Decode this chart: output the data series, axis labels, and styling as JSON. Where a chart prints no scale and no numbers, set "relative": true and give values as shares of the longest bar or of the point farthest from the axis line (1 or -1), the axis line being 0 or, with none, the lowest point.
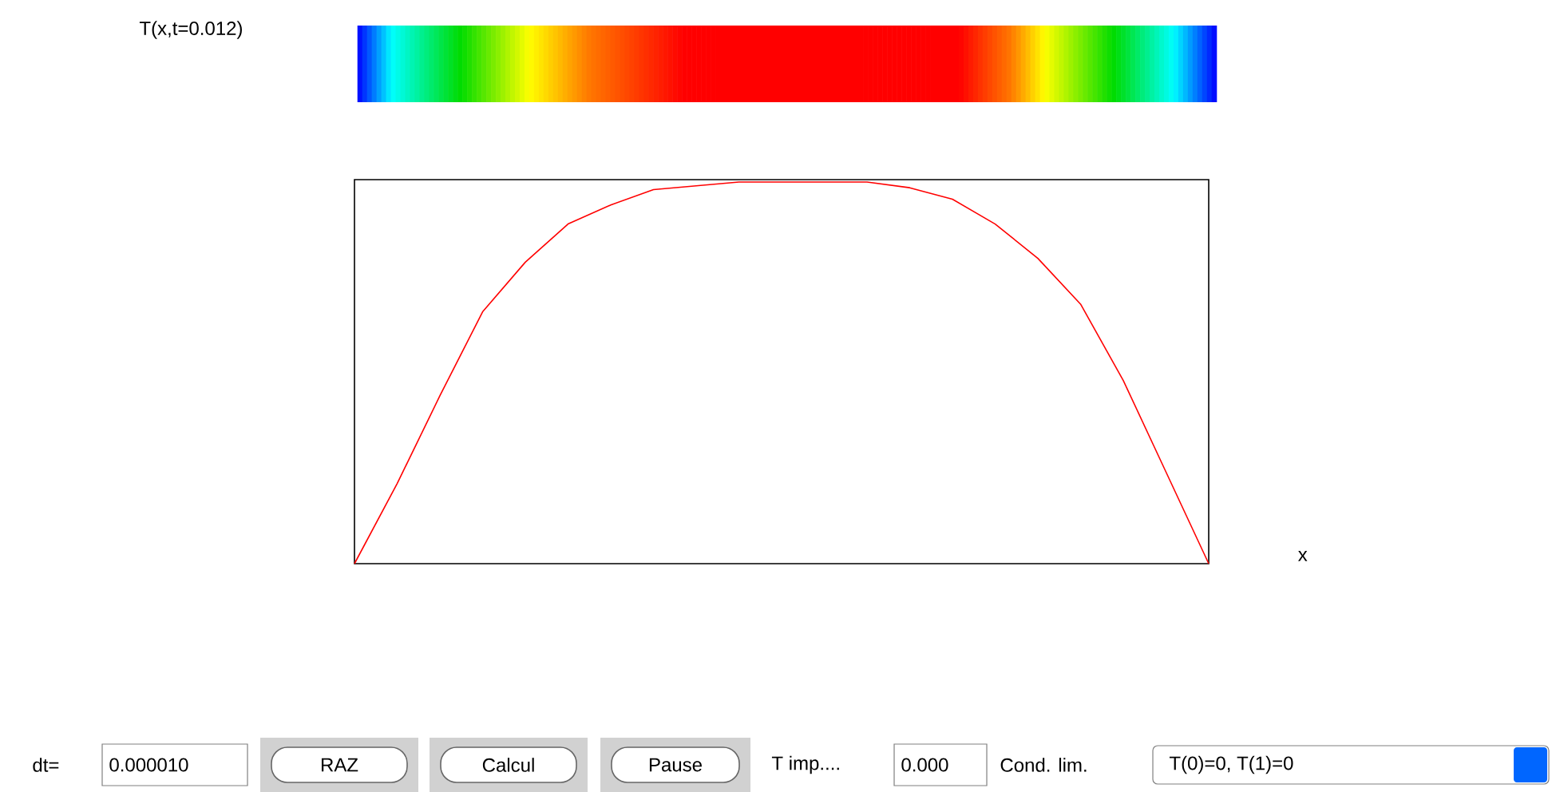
{
  "chart_data": {
    "type": "line",
    "title": "T(x,t=0.012)",
    "xlabel": "x",
    "relative": true,
    "categories": [
      null,
      null,
      null,
      null,
      null,
      null,
      null,
      null,
      null,
      null,
      null,
      null,
      null,
      null,
      null,
      null,
      null,
      null,
      null,
      null,
      null
    ],
    "series": [
      {
        "color": "#ff0000",
        "values": [
          0,
          0.21,
          0.44,
          0.66,
          0.79,
          0.89,
          0.94,
          0.98,
          0.99,
          1,
          1,
          1,
          1,
          0.985,
          0.955,
          0.89,
          0.8,
          0.68,
          0.48,
          0.24,
          0
        ]
      }
    ],
    "annotations": [
      "dt=",
      "0.000010",
      "RAZ",
      "Calcul",
      "Pause",
      "T imp....",
      "0.000",
      "Cond. lim.",
      "T(0)=0, T(1)=0"
    ]
  }
}
